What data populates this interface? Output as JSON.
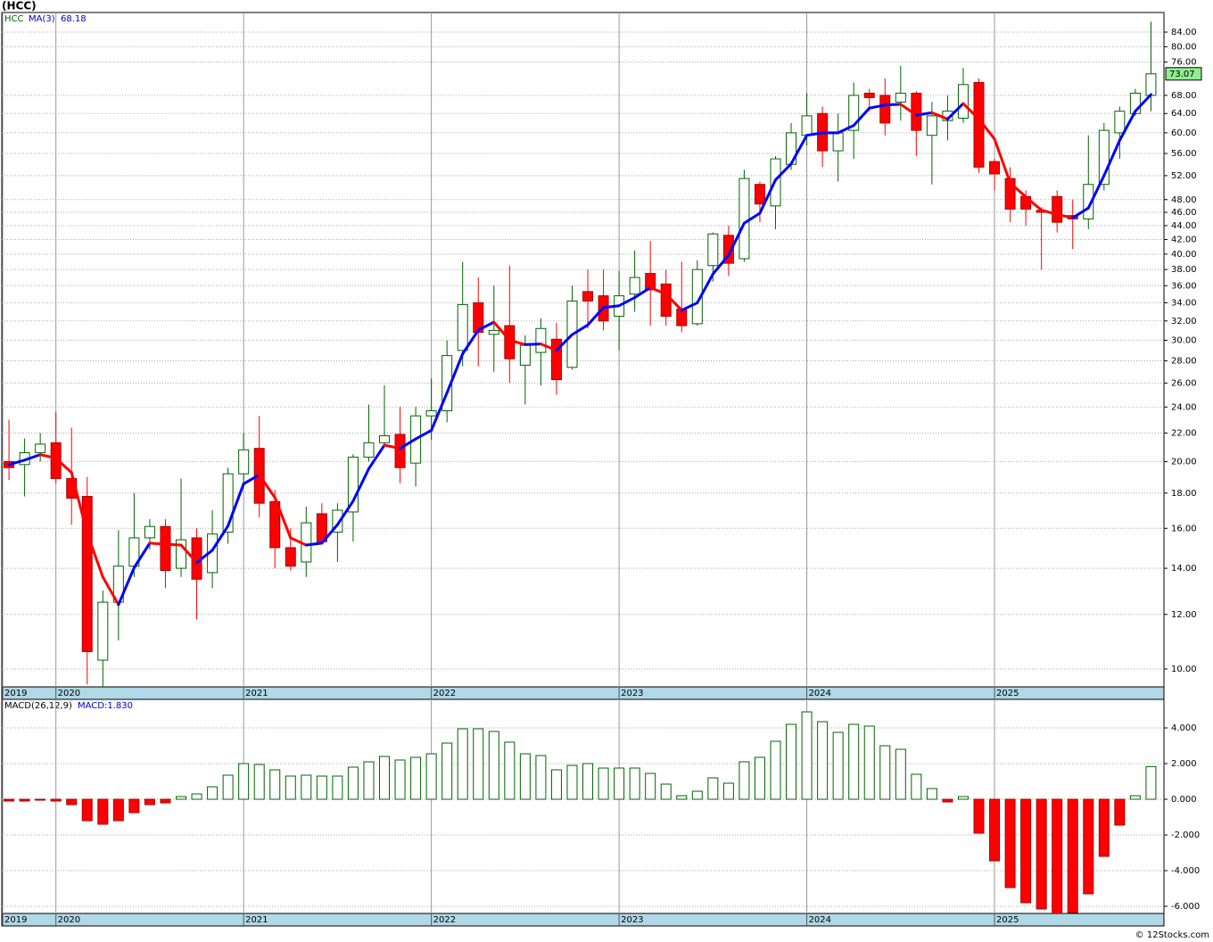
{
  "chart_data": [
    {
      "type": "candlestick",
      "title": "(HCC)",
      "name": "HCC",
      "log": true,
      "grid": true,
      "up_color": "#006400",
      "down_color": "#ff0000",
      "xlim": [
        -0.46,
        73.83
      ],
      "xticks": [
        {
          "value": -0.4,
          "label": "2019"
        },
        {
          "value": 3,
          "label": "2020"
        },
        {
          "value": 15,
          "label": "2021"
        },
        {
          "value": 27,
          "label": "2022"
        },
        {
          "value": 39,
          "label": "2023"
        },
        {
          "value": 51,
          "label": "2024"
        },
        {
          "value": 63,
          "label": "2025"
        }
      ],
      "ylim": [
        9.42,
        89.7
      ],
      "yticks": [
        {
          "value": 10,
          "label": "10.00"
        },
        {
          "value": 12,
          "label": "12.00"
        },
        {
          "value": 14,
          "label": "14.00"
        },
        {
          "value": 16,
          "label": "16.00"
        },
        {
          "value": 18,
          "label": "18.00"
        },
        {
          "value": 20,
          "label": "20.00"
        },
        {
          "value": 22,
          "label": "22.00"
        },
        {
          "value": 24,
          "label": "24.00"
        },
        {
          "value": 26,
          "label": "26.00"
        },
        {
          "value": 28,
          "label": "28.00"
        },
        {
          "value": 30,
          "label": "30.00"
        },
        {
          "value": 32,
          "label": "32.00"
        },
        {
          "value": 34,
          "label": "34.00"
        },
        {
          "value": 36,
          "label": "36.00"
        },
        {
          "value": 38,
          "label": "38.00"
        },
        {
          "value": 40,
          "label": "40.00"
        },
        {
          "value": 42,
          "label": "42.00"
        },
        {
          "value": 44,
          "label": "44.00"
        },
        {
          "value": 46,
          "label": "46.00"
        },
        {
          "value": 48,
          "label": "48.00"
        },
        {
          "value": 52,
          "label": "52.00"
        },
        {
          "value": 56,
          "label": "56.00"
        },
        {
          "value": 60,
          "label": "60.00"
        },
        {
          "value": 64,
          "label": "64.00"
        },
        {
          "value": 68,
          "label": "68.00"
        },
        {
          "value": 76,
          "label": "76.00"
        },
        {
          "value": 80,
          "label": "80.00"
        },
        {
          "value": 84,
          "label": "84.00"
        }
      ],
      "open": [
        20.0,
        19.8,
        20.6,
        21.3,
        18.9,
        17.8,
        10.3,
        12.5,
        14.1,
        15.5,
        16.1,
        14.0,
        15.5,
        13.8,
        15.8,
        19.2,
        20.9,
        17.5,
        15.0,
        14.3,
        16.8,
        15.8,
        16.9,
        20.3,
        21.3,
        21.9,
        19.9,
        23.3,
        23.7,
        29.0,
        34.0,
        30.6,
        31.5,
        27.6,
        28.8,
        30.1,
        27.4,
        35.3,
        34.8,
        32.5,
        35.0,
        37.5,
        36.2,
        33.3,
        31.7,
        38.5,
        42.6,
        39.4,
        50.5,
        47.0,
        54.0,
        59.5,
        64.0,
        56.5,
        60.5,
        68.5,
        68.0,
        66.5,
        68.5,
        59.5,
        62.5,
        63.0,
        71.0,
        54.5,
        51.5,
        48.5,
        46.3,
        48.5,
        45.5,
        45.0,
        50.5,
        60.0,
        64.0,
        68.0
      ],
      "high": [
        23.0,
        21.6,
        22.0,
        23.6,
        22.4,
        19.0,
        13.0,
        15.9,
        18.0,
        16.5,
        16.5,
        18.9,
        16.0,
        17.0,
        19.6,
        22.0,
        23.3,
        18.2,
        16.0,
        17.2,
        17.4,
        17.4,
        20.5,
        24.2,
        25.8,
        24.0,
        24.0,
        26.4,
        30.0,
        39.0,
        37.0,
        36.0,
        38.5,
        30.5,
        32.3,
        31.8,
        36.0,
        38.0,
        38.0,
        37.8,
        40.5,
        41.8,
        38.0,
        39.0,
        39.2,
        43.0,
        44.0,
        53.0,
        51.0,
        55.5,
        62.0,
        68.5,
        65.5,
        64.0,
        71.0,
        69.5,
        72.0,
        75.0,
        69.0,
        66.5,
        68.0,
        74.5,
        72.0,
        55.0,
        53.5,
        49.5,
        46.8,
        49.5,
        48.0,
        59.5,
        62.0,
        65.5,
        69.5,
        87.0
      ],
      "low": [
        18.8,
        17.8,
        20.0,
        18.6,
        16.2,
        9.5,
        9.4,
        11.0,
        13.6,
        14.9,
        13.1,
        13.6,
        11.8,
        13.1,
        15.2,
        18.4,
        16.6,
        14.0,
        13.9,
        13.6,
        15.2,
        14.3,
        15.3,
        20.0,
        21.0,
        18.6,
        18.4,
        21.5,
        22.8,
        27.5,
        27.5,
        27.0,
        26.0,
        24.2,
        25.8,
        25.0,
        27.2,
        31.2,
        31.0,
        29.0,
        33.0,
        31.5,
        31.5,
        30.8,
        31.5,
        36.5,
        37.2,
        39.0,
        44.5,
        43.5,
        53.0,
        57.5,
        53.5,
        51.0,
        55.0,
        64.5,
        59.5,
        62.5,
        55.5,
        50.5,
        58.5,
        62.0,
        52.5,
        49.5,
        44.5,
        44.0,
        38.0,
        43.0,
        40.7,
        43.5,
        49.5,
        55.0,
        63.5,
        64.5
      ],
      "close": [
        19.6,
        20.6,
        21.2,
        18.9,
        17.7,
        10.6,
        12.5,
        14.1,
        15.5,
        16.1,
        13.9,
        15.4,
        13.5,
        15.7,
        19.2,
        20.8,
        17.4,
        15.0,
        14.1,
        16.3,
        15.3,
        17.0,
        20.3,
        21.3,
        21.8,
        19.6,
        23.3,
        23.7,
        28.5,
        33.8,
        30.8,
        31.0,
        28.2,
        29.5,
        31.2,
        26.3,
        34.2,
        34.2,
        32.0,
        34.8,
        37.0,
        35.5,
        32.5,
        31.5,
        38.0,
        42.8,
        38.8,
        51.5,
        47.3,
        55.0,
        60.0,
        63.5,
        56.5,
        60.0,
        68.0,
        67.5,
        62.0,
        68.5,
        60.5,
        63.5,
        64.5,
        70.5,
        53.5,
        52.3,
        46.5,
        46.5,
        46.0,
        44.5,
        45.0,
        50.5,
        60.5,
        64.5,
        68.5,
        73.07
      ],
      "ma": {
        "name": "MA(3)",
        "up_color": "#0000ff",
        "down_color": "#ff0000",
        "values": [
          19.8,
          20.1,
          20.47,
          20.23,
          19.27,
          15.73,
          13.6,
          12.4,
          14.03,
          15.23,
          15.17,
          15.13,
          14.27,
          14.87,
          16.13,
          18.57,
          19.13,
          17.73,
          15.5,
          15.13,
          15.23,
          16.2,
          17.53,
          19.53,
          21.13,
          20.9,
          21.57,
          22.2,
          25.17,
          28.67,
          31.03,
          31.87,
          30.0,
          29.57,
          29.63,
          29.0,
          30.57,
          31.57,
          33.47,
          33.67,
          34.6,
          35.77,
          35.0,
          33.17,
          34.0,
          37.43,
          39.87,
          44.37,
          45.87,
          51.27,
          54.1,
          59.5,
          60.0,
          60.0,
          61.5,
          65.17,
          65.83,
          66.0,
          63.67,
          64.17,
          62.83,
          66.17,
          62.83,
          58.77,
          50.77,
          48.43,
          46.33,
          45.67,
          45.17,
          46.67,
          52.0,
          58.5,
          64.5,
          68.18
        ]
      }
    },
    {
      "type": "bar",
      "name": "MACD(26,12,9)",
      "value_text": "MACD:1.830",
      "grid": true,
      "up_color": "#006400",
      "down_color": "#ff0000",
      "xlim": [
        -0.46,
        73.83
      ],
      "xticks": [
        {
          "value": -0.4,
          "label": "2019"
        },
        {
          "value": 3,
          "label": "2020"
        },
        {
          "value": 15,
          "label": "2021"
        },
        {
          "value": 27,
          "label": "2022"
        },
        {
          "value": 39,
          "label": "2023"
        },
        {
          "value": 51,
          "label": "2024"
        },
        {
          "value": 63,
          "label": "2025"
        }
      ],
      "ylim": [
        -6.4,
        5.6
      ],
      "yticks": [
        {
          "value": -6,
          "label": "-6.000"
        },
        {
          "value": -4,
          "label": "-4.000"
        },
        {
          "value": -2,
          "label": "-2.000"
        },
        {
          "value": 0,
          "label": "0.000"
        },
        {
          "value": 2,
          "label": "2.000"
        },
        {
          "value": 4,
          "label": "4.000"
        }
      ],
      "values": [
        -0.1,
        -0.1,
        -0.05,
        -0.1,
        -0.3,
        -1.2,
        -1.4,
        -1.2,
        -0.75,
        -0.3,
        -0.2,
        0.15,
        0.3,
        0.7,
        1.35,
        2.0,
        1.95,
        1.65,
        1.3,
        1.35,
        1.3,
        1.3,
        1.8,
        2.1,
        2.4,
        2.2,
        2.35,
        2.55,
        3.15,
        3.95,
        3.95,
        3.8,
        3.2,
        2.55,
        2.45,
        1.65,
        1.9,
        2.0,
        1.75,
        1.75,
        1.75,
        1.45,
        0.85,
        0.2,
        0.45,
        1.2,
        0.9,
        2.1,
        2.35,
        3.25,
        4.2,
        4.9,
        4.35,
        3.75,
        4.2,
        4.1,
        3.0,
        2.8,
        1.4,
        0.6,
        -0.15,
        0.15,
        -1.9,
        -3.45,
        -4.95,
        -5.8,
        -6.15,
        -6.4,
        -6.35,
        -5.3,
        -3.2,
        -1.45,
        0.2,
        1.83
      ]
    }
  ],
  "footer": "© 12Stocks.com"
}
